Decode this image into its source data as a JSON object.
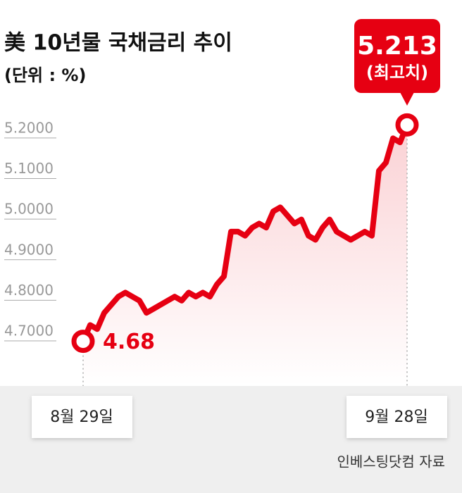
{
  "chart_data": {
    "type": "line",
    "title": "美 10년물 국채금리 추이",
    "subtitle": "(단위 : %)",
    "source": "인베스팅닷컴 자료",
    "peak_label": "(최고치)",
    "categories": [
      "8월 29일",
      null,
      null,
      null,
      null,
      null,
      null,
      null,
      null,
      null,
      null,
      null,
      null,
      null,
      null,
      null,
      null,
      null,
      null,
      null,
      null,
      null,
      null,
      null,
      null,
      null,
      null,
      null,
      null,
      null,
      null,
      null,
      null,
      null,
      null,
      null,
      null,
      null,
      null,
      null,
      null,
      null,
      null,
      null,
      null,
      null,
      "9월 28일"
    ],
    "series": [
      {
        "name": "美 10년물 국채금리",
        "color": "#e60012",
        "values": [
          4.68,
          4.72,
          4.71,
          4.75,
          4.77,
          4.79,
          4.8,
          4.79,
          4.78,
          4.75,
          4.76,
          4.77,
          4.78,
          4.79,
          4.78,
          4.8,
          4.79,
          4.8,
          4.79,
          4.82,
          4.84,
          4.95,
          4.95,
          4.94,
          4.96,
          4.97,
          4.96,
          5.0,
          5.01,
          4.99,
          4.97,
          4.98,
          4.94,
          4.93,
          4.96,
          4.98,
          4.95,
          4.94,
          4.93,
          4.94,
          4.95,
          4.94,
          5.1,
          5.12,
          5.18,
          5.17,
          5.213
        ]
      }
    ],
    "ylim": [
      4.57,
      5.25
    ],
    "yticks": [
      {
        "value": 4.7,
        "label": "4.7000"
      },
      {
        "value": 4.8,
        "label": "4.8000"
      },
      {
        "value": 4.9,
        "label": "4.9000"
      },
      {
        "value": 5.0,
        "label": "5.0000"
      },
      {
        "value": 5.1,
        "label": "5.1000"
      },
      {
        "value": 5.2,
        "label": "5.2000"
      }
    ]
  }
}
